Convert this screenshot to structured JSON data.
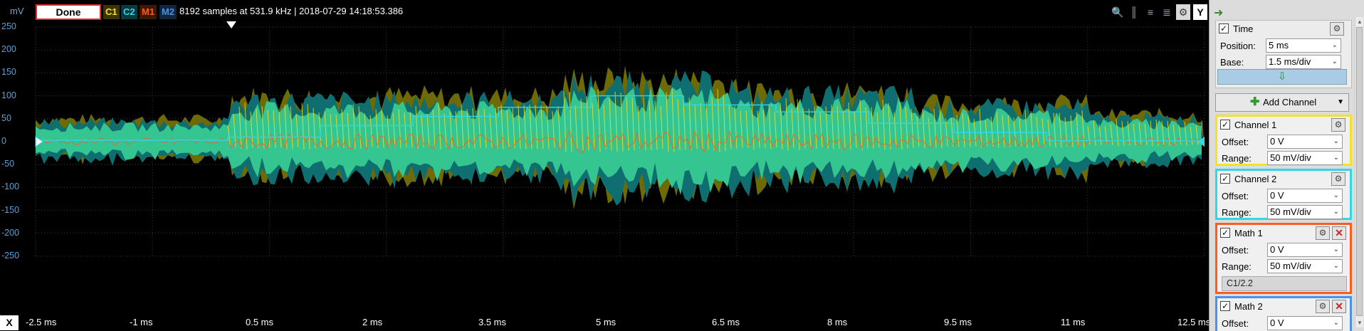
{
  "toolbar": {
    "unit": "mV",
    "status": "Done",
    "channels": [
      {
        "label": "C1",
        "color": "#f2e22a",
        "bg": "#3d3400"
      },
      {
        "label": "C2",
        "color": "#33d6e6",
        "bg": "#0a3a40"
      },
      {
        "label": "M1",
        "color": "#ff5a1f",
        "bg": "#3f1800"
      },
      {
        "label": "M2",
        "color": "#4d92e0",
        "bg": "#10253f"
      }
    ],
    "info": "8192 samples at 531.9 kHz | 2018-07-29 14:18:53.386",
    "icons": [
      "zoom-icon",
      "cursor-a-icon",
      "cursor-b-icon",
      "cursor-c-icon",
      "settings-icon"
    ],
    "y_button": "Y"
  },
  "plot": {
    "y_ticks": [
      "250",
      "200",
      "150",
      "100",
      "50",
      "0",
      "-50",
      "-100",
      "-150",
      "-200",
      "-250"
    ],
    "x_ticks": [
      "-2.5 ms",
      "-1 ms",
      "0.5 ms",
      "2 ms",
      "3.5 ms",
      "5 ms",
      "6.5 ms",
      "8 ms",
      "9.5 ms",
      "11 ms",
      "12.5 ms"
    ],
    "x_button": "X"
  },
  "panel": {
    "time": {
      "title": "Time",
      "position_label": "Position:",
      "position_value": "5 ms",
      "base_label": "Base:",
      "base_value": "1.5 ms/div"
    },
    "add_channel": "Add Channel",
    "channel1": {
      "title": "Channel 1",
      "offset_label": "Offset:",
      "offset_value": "0 V",
      "range_label": "Range:",
      "range_value": "50 mV/div",
      "color": "#f2e22a"
    },
    "channel2": {
      "title": "Channel 2",
      "offset_label": "Offset:",
      "offset_value": "0 V",
      "range_label": "Range:",
      "range_value": "50 mV/div",
      "color": "#33d6e6"
    },
    "math1": {
      "title": "Math 1",
      "offset_label": "Offset:",
      "offset_value": "0 V",
      "range_label": "Range:",
      "range_value": "50 mV/div",
      "expression": "C1/2.2",
      "color": "#ff5a1f"
    },
    "math2": {
      "title": "Math 2",
      "offset_label": "Offset:",
      "offset_value": "0 V",
      "color": "#4d92e0"
    }
  }
}
